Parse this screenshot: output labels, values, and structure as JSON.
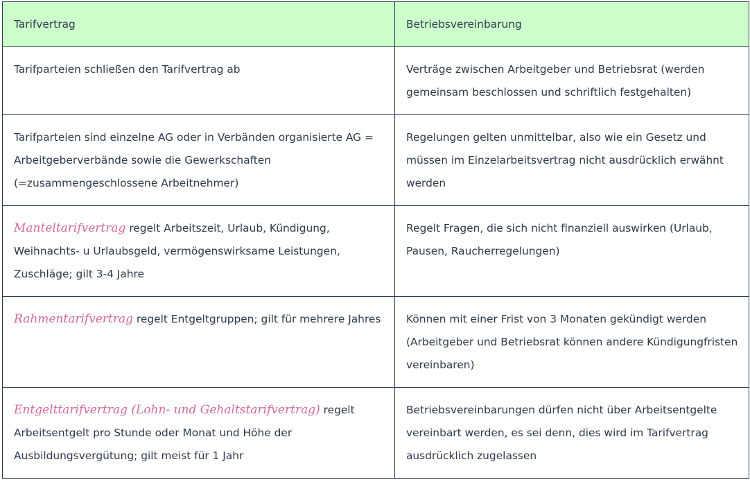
{
  "header": {
    "left": "Tarifvertrag",
    "right": "Betriebsvereinbarung"
  },
  "rows": [
    {
      "left_em": "",
      "left": "Tarifparteien schließen den Tarifvertrag ab",
      "right": "Verträge zwischen Arbeitgeber und Betriebsrat (werden gemeinsam beschlossen und schriftlich festgehalten)"
    },
    {
      "left_em": "",
      "left": "Tarifparteien sind einzelne AG oder in Verbänden organisierte AG = Arbeitgeberverbände sowie die Gewerkschaften (=zusammengeschlossene Arbeitnehmer)",
      "right": "Regelungen gelten unmittelbar, also wie ein Gesetz und müssen im Einzelarbeitsvertrag nicht ausdrücklich erwähnt werden"
    },
    {
      "left_em": "Manteltarifvertrag",
      "left": " regelt Arbeitszeit, Urlaub, Kündigung, Weihnachts- u Urlaubsgeld, vermögenswirksame Leistungen, Zuschläge; gilt 3-4 Jahre",
      "right": "Regelt Fragen, die sich nicht finanziell auswirken (Urlaub, Pausen, Raucherregelungen)"
    },
    {
      "left_em": "Rahmentarifvertrag",
      "left": " regelt Entgeltgruppen; gilt für mehrere Jahres",
      "right": "Können mit einer Frist von 3 Monaten gekündigt werden (Arbeitgeber und Betriebsrat können andere Kündigungfristen vereinbaren)"
    },
    {
      "left_em": "Entgelttarifvertrag (Lohn- und Gehaltstarifvertrag)",
      "left": " regelt Arbeitsentgelt pro Stunde oder Monat und Höhe der Ausbildungsvergütung; gilt meist für 1 Jahr",
      "right": "Betriebsvereinbarungen dürfen nicht über Arbeitsentgelte vereinbart werden, es sei denn, dies wird im Tarifvertrag ausdrücklich zugelassen"
    }
  ],
  "colors": {
    "header_bg": "#ccffcc",
    "emphasis": "#d2699f",
    "text": "#2d3a48"
  }
}
